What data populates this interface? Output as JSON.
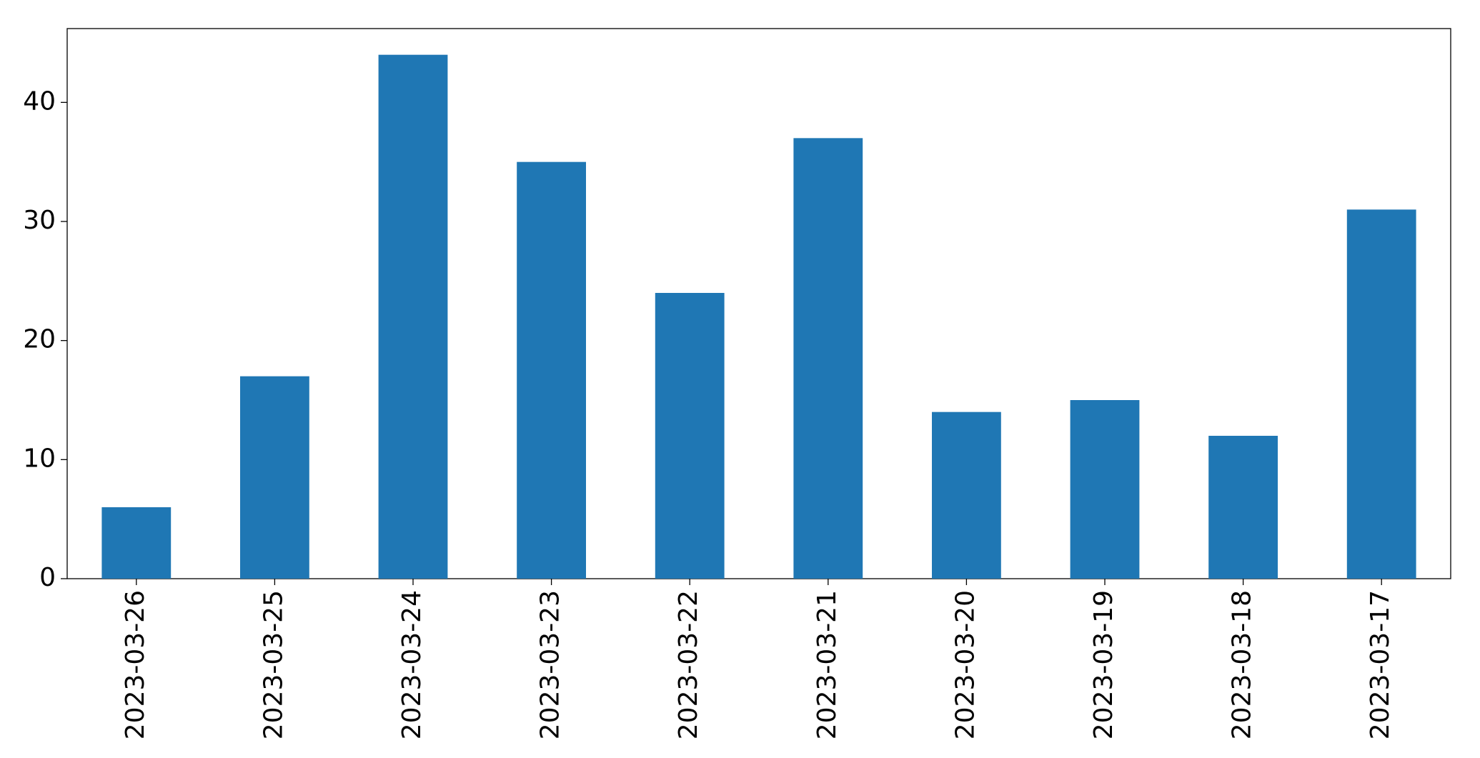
{
  "chart_data": {
    "type": "bar",
    "categories": [
      "2023-03-26",
      "2023-03-25",
      "2023-03-24",
      "2023-03-23",
      "2023-03-22",
      "2023-03-21",
      "2023-03-20",
      "2023-03-19",
      "2023-03-18",
      "2023-03-17"
    ],
    "values": [
      6,
      17,
      44,
      35,
      24,
      37,
      14,
      15,
      12,
      31
    ],
    "color": "#1f77b4",
    "ylim": [
      0,
      46.2
    ],
    "yticks": [
      0,
      10,
      20,
      30,
      40
    ],
    "grid": false
  }
}
